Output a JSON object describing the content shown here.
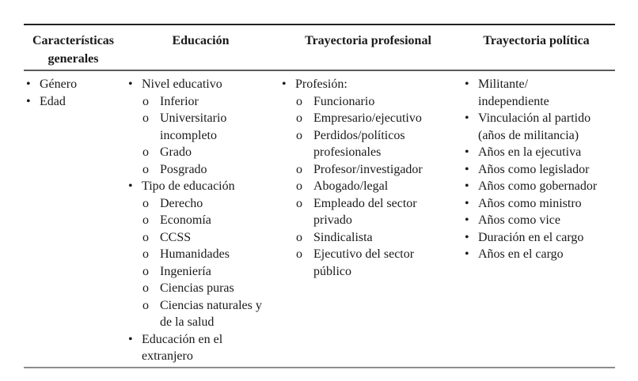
{
  "bullets": {
    "level1": "•",
    "level2": "o"
  },
  "table": {
    "headers": [
      {
        "label": "Características generales"
      },
      {
        "label": "Educación"
      },
      {
        "label": "Trayectoria profesional"
      },
      {
        "label": "Trayectoria política"
      }
    ],
    "columns": [
      {
        "name": "caracteristicas-generales",
        "items": [
          {
            "level": 1,
            "text": "Género"
          },
          {
            "level": 1,
            "text": "Edad"
          }
        ]
      },
      {
        "name": "educacion",
        "items": [
          {
            "level": 1,
            "text": "Nivel educativo"
          },
          {
            "level": 2,
            "text": "Inferior"
          },
          {
            "level": 2,
            "text": "Universitario\nincompleto"
          },
          {
            "level": 2,
            "text": "Grado"
          },
          {
            "level": 2,
            "text": "Posgrado"
          },
          {
            "level": 1,
            "text": "Tipo de educación"
          },
          {
            "level": 2,
            "text": "Derecho"
          },
          {
            "level": 2,
            "text": "Economía"
          },
          {
            "level": 2,
            "text": "CCSS"
          },
          {
            "level": 2,
            "text": "Humanidades"
          },
          {
            "level": 2,
            "text": "Ingeniería"
          },
          {
            "level": 2,
            "text": "Ciencias puras"
          },
          {
            "level": 2,
            "text": "Ciencias naturales y\nde la salud"
          },
          {
            "level": 1,
            "text": "Educación en el\nextranjero"
          }
        ]
      },
      {
        "name": "trayectoria-profesional",
        "items": [
          {
            "level": 1,
            "text": "Profesión:"
          },
          {
            "level": 2,
            "text": "Funcionario"
          },
          {
            "level": 2,
            "text": "Empresario/ejecutivo"
          },
          {
            "level": 2,
            "text": "Perdidos/políticos\nprofesionales"
          },
          {
            "level": 2,
            "text": "Profesor/investigador"
          },
          {
            "level": 2,
            "text": "Abogado/legal"
          },
          {
            "level": 2,
            "text": "Empleado del sector\nprivado"
          },
          {
            "level": 2,
            "text": "Sindicalista"
          },
          {
            "level": 2,
            "text": "Ejecutivo del sector\npúblico"
          }
        ]
      },
      {
        "name": "trayectoria-politica",
        "items": [
          {
            "level": 1,
            "text": "Militante/\nindependiente"
          },
          {
            "level": 1,
            "text": "Vinculación al partido\n(años de militancia)"
          },
          {
            "level": 1,
            "text": "Años en la ejecutiva"
          },
          {
            "level": 1,
            "text": "Años como legislador"
          },
          {
            "level": 1,
            "text": "Años como gobernador"
          },
          {
            "level": 1,
            "text": "Años como ministro"
          },
          {
            "level": 1,
            "text": "Años como vice"
          },
          {
            "level": 1,
            "text": "Duración en el cargo"
          },
          {
            "level": 1,
            "text": "Años en el cargo"
          }
        ]
      }
    ]
  }
}
